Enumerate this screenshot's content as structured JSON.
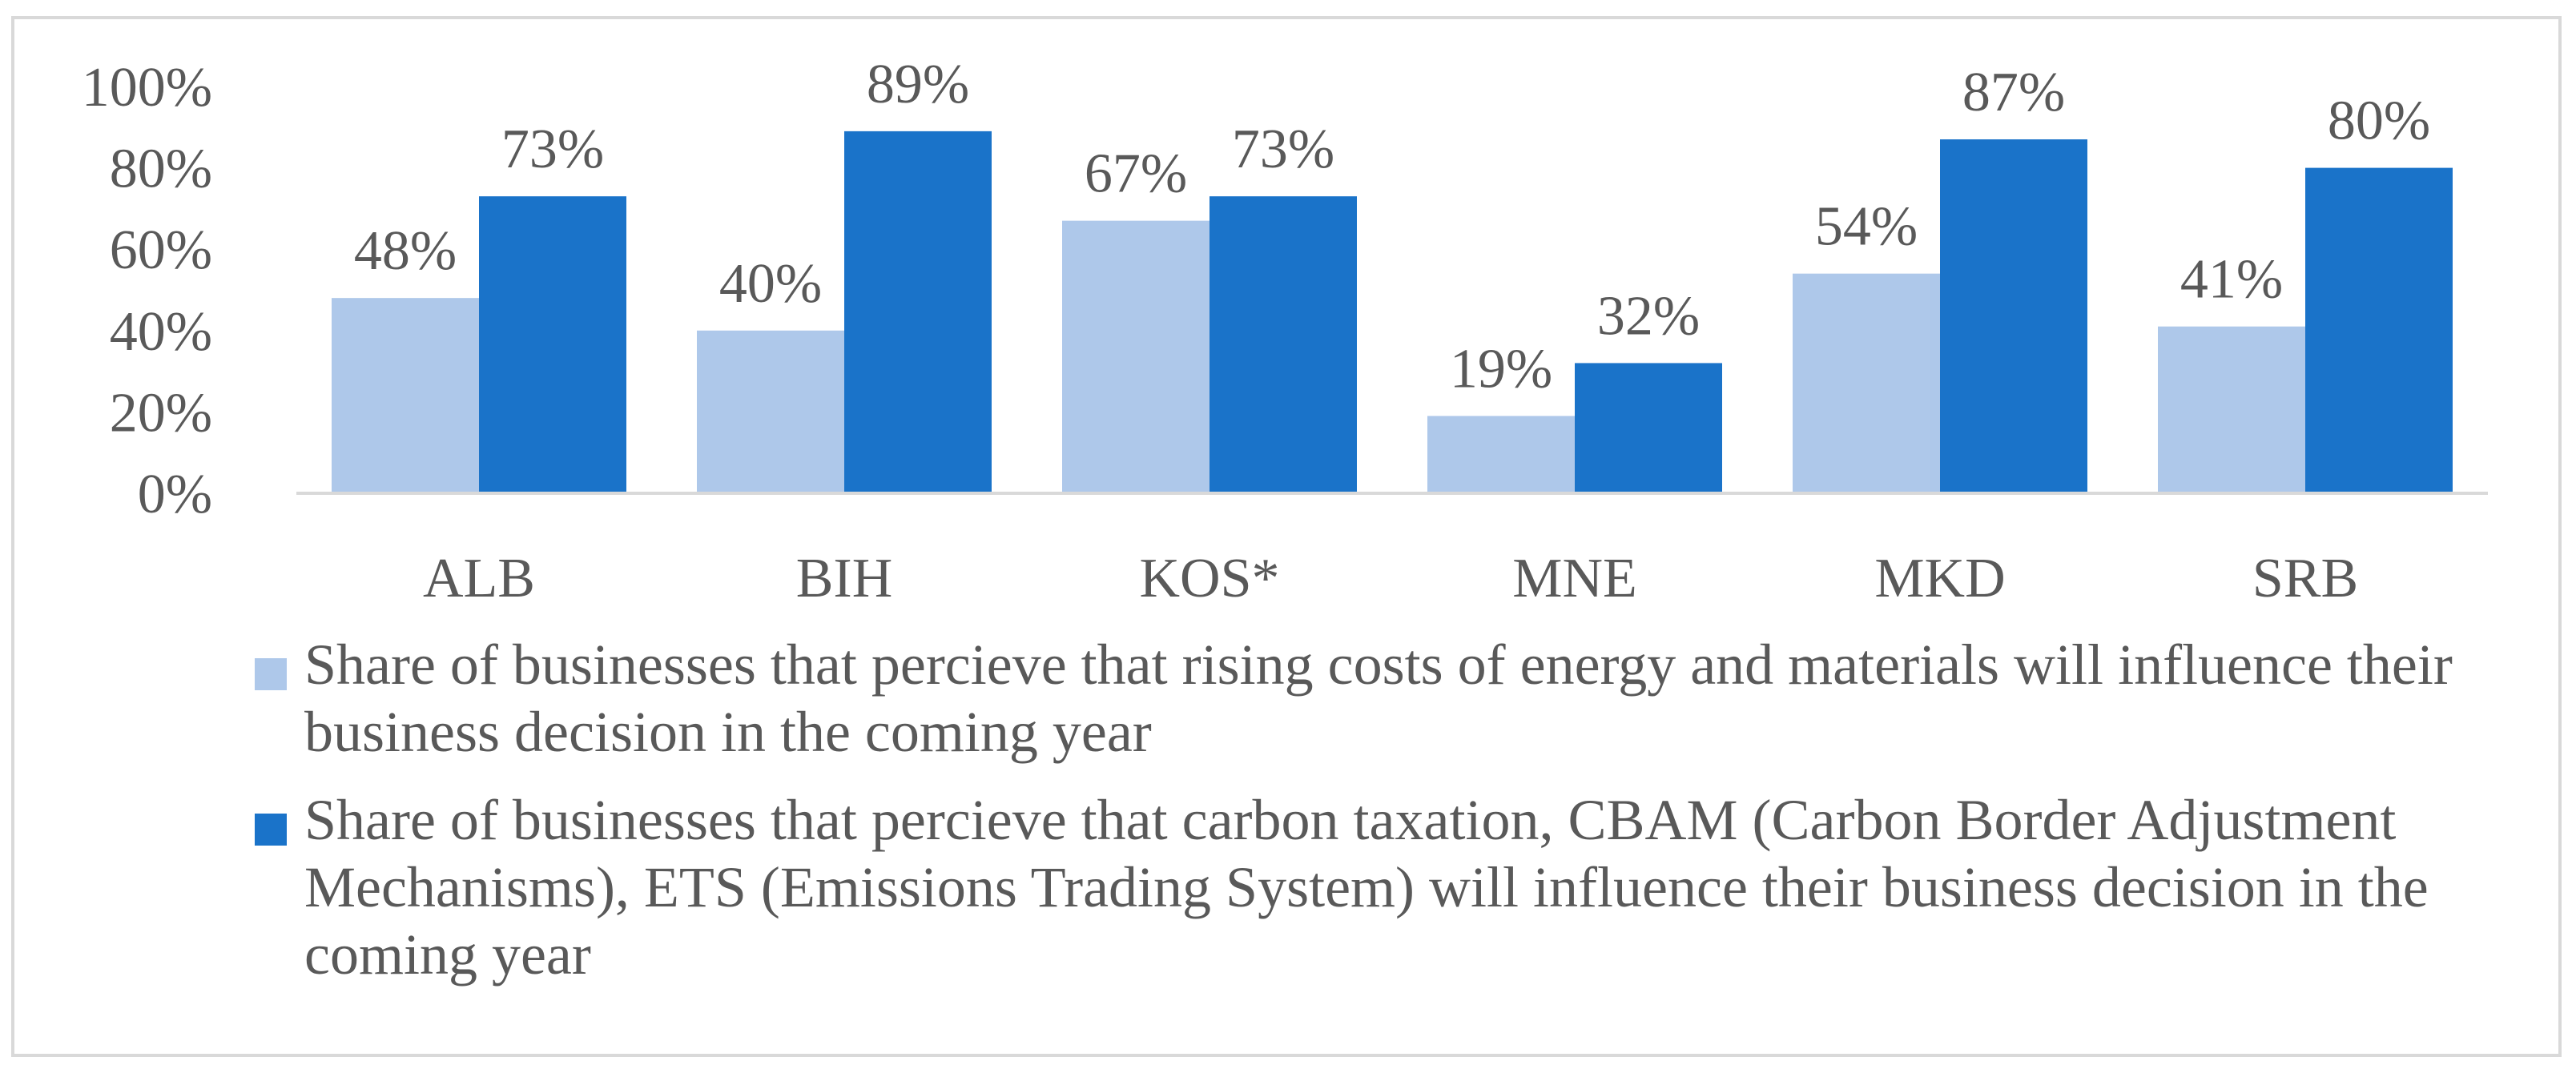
{
  "chart_data": {
    "type": "bar",
    "title": "",
    "xlabel": "",
    "ylabel": "",
    "categories": [
      "ALB",
      "BIH",
      "KOS*",
      "MNE",
      "MKD",
      "SRB"
    ],
    "series": [
      {
        "name": "Share of businesses that percieve that rising costs of energy and materials will influence their business decision in the coming year",
        "color": "#aec8ea",
        "values": [
          48,
          40,
          67,
          19,
          54,
          41
        ],
        "labels": [
          "48%",
          "40%",
          "67%",
          "19%",
          "54%",
          "41%"
        ]
      },
      {
        "name": "Share of businesses that percieve that carbon taxation, CBAM (Carbon Border Adjustment Mechanisms), ETS (Emissions Trading System) will influence their business decision in the coming year",
        "color": "#1a73c9",
        "values": [
          73,
          89,
          73,
          32,
          87,
          80
        ],
        "labels": [
          "73%",
          "89%",
          "73%",
          "32%",
          "87%",
          "80%"
        ]
      }
    ],
    "ylim": [
      0,
      100
    ],
    "yticks": [
      0,
      20,
      40,
      60,
      80,
      100
    ],
    "ytick_labels": [
      "0%",
      "20%",
      "40%",
      "60%",
      "80%",
      "100%"
    ],
    "grid": false,
    "legend_position": "bottom"
  }
}
